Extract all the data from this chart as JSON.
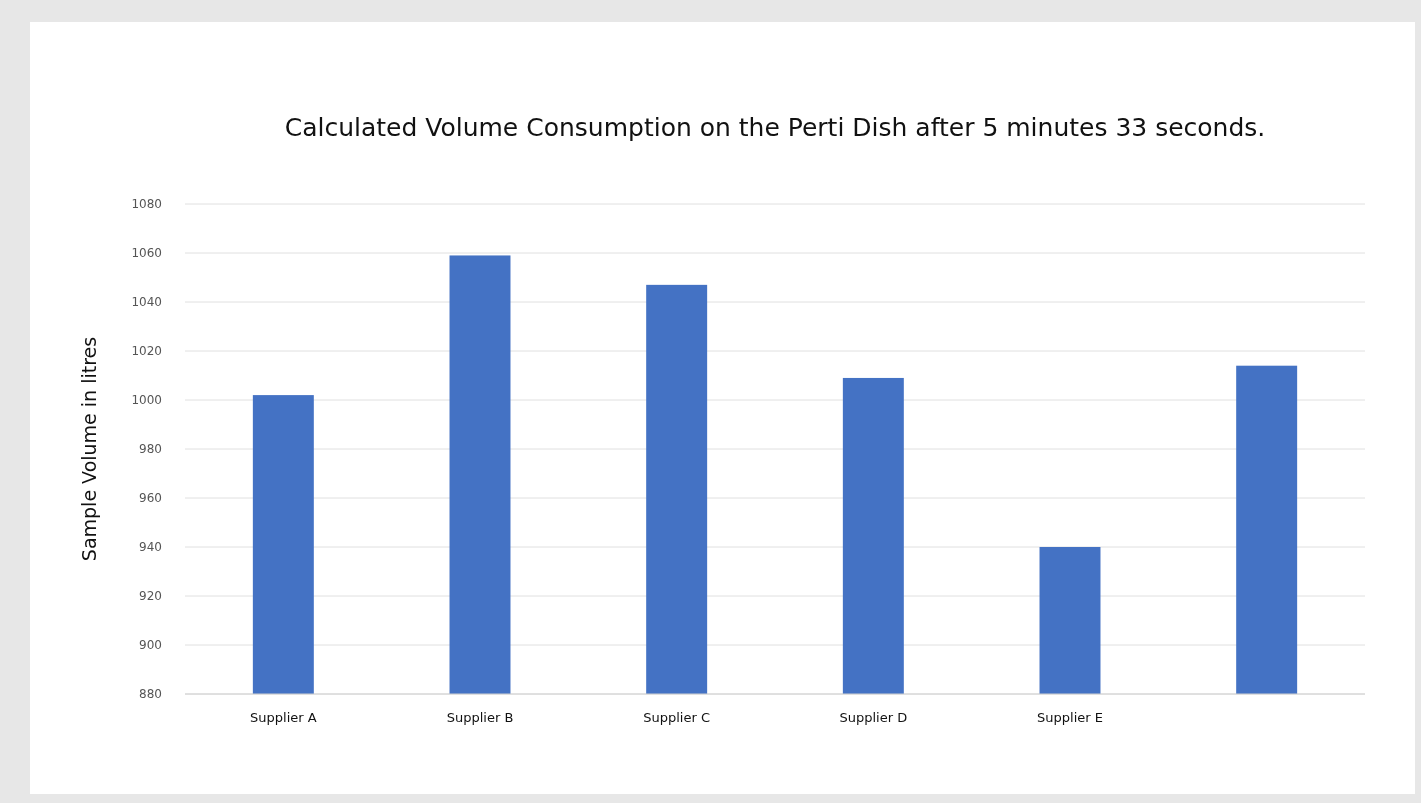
{
  "chart_data": {
    "type": "bar",
    "title": "Calculated Volume Consumption on the Perti Dish after 5 minutes 33 seconds.",
    "ylabel": "Sample Volume in litres",
    "categories": [
      "Supplier A",
      "Supplier B",
      "Supplier C",
      "Supplier D",
      "Supplier E",
      null
    ],
    "values": [
      1002,
      1059,
      1047,
      1009,
      940,
      1014
    ],
    "color": "#4472c4",
    "ylim": [
      880,
      1080
    ],
    "yticks": [
      880,
      900,
      920,
      940,
      960,
      980,
      1000,
      1020,
      1040,
      1060,
      1080
    ],
    "grid": "y"
  }
}
